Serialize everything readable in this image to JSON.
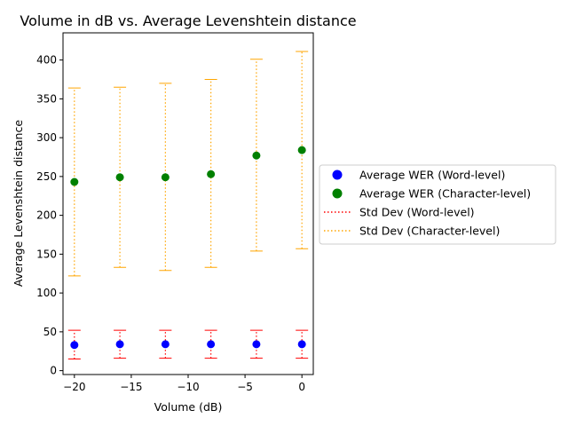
{
  "chart_data": {
    "type": "scatter",
    "title": "Volume in dB vs. Average Levenshtein distance",
    "xlabel": "Volume (dB)",
    "ylabel": "Average Levenshtein distance",
    "xlim": [
      -21,
      1
    ],
    "ylim": [
      -5,
      435
    ],
    "xticks": [
      -20,
      -15,
      -10,
      -5,
      0
    ],
    "xtick_labels": [
      "−20",
      "−15",
      "−10",
      "−5",
      "0"
    ],
    "yticks": [
      0,
      50,
      100,
      150,
      200,
      250,
      300,
      350,
      400
    ],
    "ytick_labels": [
      "0",
      "50",
      "100",
      "150",
      "200",
      "250",
      "300",
      "350",
      "400"
    ],
    "grid": false,
    "legend_position": "outside-right",
    "x": [
      -20,
      -16,
      -12,
      -8,
      -4,
      0
    ],
    "series": [
      {
        "name": "Average WER (Word-level)",
        "marker": "circle",
        "color": "#0000ff",
        "values": [
          33,
          34,
          34,
          34,
          34,
          34
        ],
        "std_name": "Std Dev (Word-level)",
        "std_color": "#ff0000",
        "lower": [
          15,
          16,
          16,
          16,
          16,
          16
        ],
        "upper": [
          52,
          52,
          52,
          52,
          52,
          52
        ]
      },
      {
        "name": "Average WER (Character-level)",
        "marker": "circle",
        "color": "#008000",
        "values": [
          243,
          249,
          249,
          253,
          277,
          284
        ],
        "std_name": "Std Dev (Character-level)",
        "std_color": "#ffa500",
        "lower": [
          122,
          133,
          129,
          133,
          154,
          157
        ],
        "upper": [
          364,
          365,
          370,
          375,
          401,
          411
        ]
      }
    ]
  }
}
